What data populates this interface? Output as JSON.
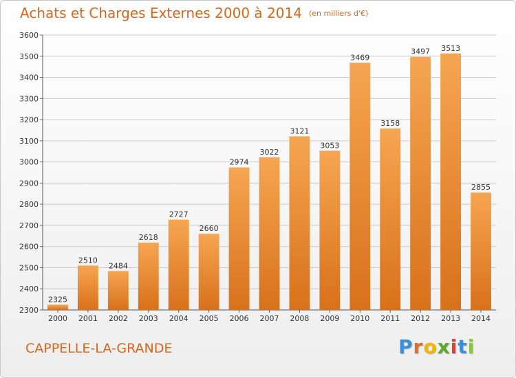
{
  "chart_data": {
    "type": "bar",
    "title": "Achats et Charges Externes 2000 à 2014",
    "subtitle": "(en milliers d'€)",
    "categories": [
      "2000",
      "2001",
      "2002",
      "2003",
      "2004",
      "2005",
      "2006",
      "2007",
      "2008",
      "2009",
      "2010",
      "2011",
      "2012",
      "2013",
      "2014"
    ],
    "values": [
      2325,
      2510,
      2484,
      2618,
      2727,
      2660,
      2974,
      3022,
      3121,
      3053,
      3469,
      3158,
      3497,
      3513,
      2855
    ],
    "xlabel": "",
    "ylabel": "",
    "ylim": [
      2300,
      3600
    ],
    "yticks": [
      2300,
      2400,
      2500,
      2600,
      2700,
      2800,
      2900,
      3000,
      3100,
      3200,
      3300,
      3400,
      3500,
      3600
    ],
    "grid": true,
    "bar_color": "#f08b2e"
  },
  "footer": {
    "place": "CAPPELLE-LA-GRANDE",
    "logo_letters": [
      "P",
      "r",
      "o",
      "x",
      "i",
      "t",
      "i"
    ],
    "logo_colors": [
      "#3d8fd6",
      "#e86c1e",
      "#f2b705",
      "#5aaa2a",
      "#e63b2e",
      "#3d8fd6",
      "#8cc43f"
    ]
  }
}
